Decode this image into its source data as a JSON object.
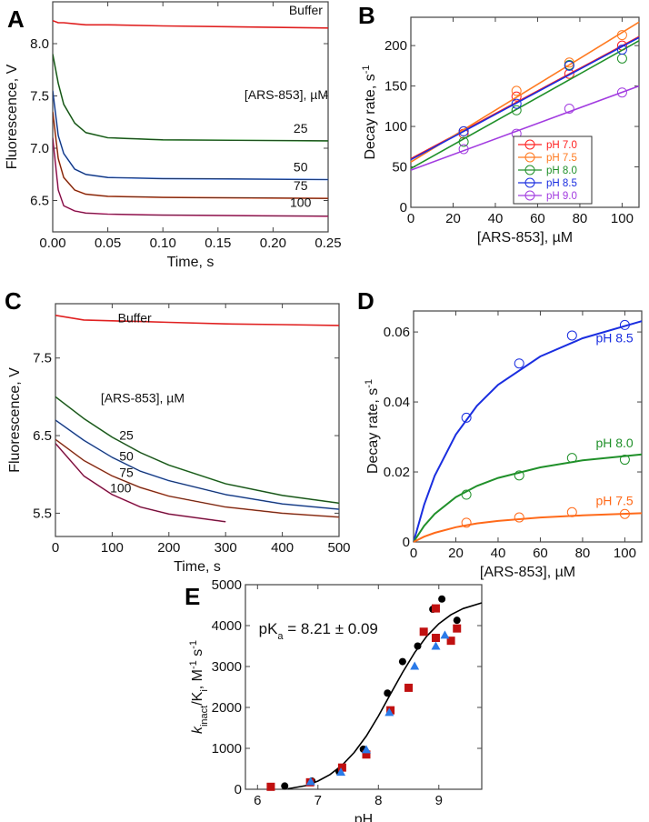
{
  "chart_data": [
    {
      "panel": "A",
      "type": "line",
      "xlabel": "Time, s",
      "ylabel": [
        {
          "t": "Fluorescence, V"
        }
      ],
      "xlim": [
        0,
        0.25
      ],
      "ylim": [
        6.2,
        8.4
      ],
      "xticks": [
        "0.00",
        "0.05",
        "0.10",
        "0.15",
        "0.20",
        "0.25"
      ],
      "yticks": [
        "6.5",
        "7.0",
        "7.5",
        "8.0"
      ],
      "grid": false,
      "x": [
        0,
        0.005,
        0.01,
        0.02,
        0.03,
        0.05,
        0.1,
        0.25
      ],
      "series": [
        {
          "name": "Buffer",
          "color": "#e02020",
          "values": [
            8.22,
            8.2,
            8.2,
            8.19,
            8.18,
            8.18,
            8.17,
            8.15
          ]
        },
        {
          "name": "25",
          "color": "#1f8a1f",
          "values": [
            7.9,
            7.62,
            7.42,
            7.24,
            7.15,
            7.1,
            7.08,
            7.07
          ]
        },
        {
          "name": "50",
          "color": "#1f5fe0",
          "values": [
            7.55,
            7.12,
            6.95,
            6.8,
            6.75,
            6.72,
            6.71,
            6.7
          ]
        },
        {
          "name": "75",
          "color": "#e04010",
          "values": [
            7.35,
            6.9,
            6.72,
            6.6,
            6.56,
            6.54,
            6.53,
            6.52
          ]
        },
        {
          "name": "100",
          "color": "#e0207a",
          "values": [
            7.1,
            6.6,
            6.45,
            6.4,
            6.38,
            6.37,
            6.36,
            6.35
          ]
        }
      ],
      "annotations": [
        "Buffer",
        "[ARS-853], µM",
        "25",
        "50",
        "75",
        "100"
      ]
    },
    {
      "panel": "B",
      "type": "scatter",
      "xlabel": "[ARS-853], µM",
      "ylabel": [
        {
          "t": "Decay rate, s"
        },
        {
          "t": "-1",
          "s": "sup"
        }
      ],
      "xlim": [
        0,
        108
      ],
      "ylim": [
        0,
        235
      ],
      "xticks": [
        "0",
        "20",
        "40",
        "60",
        "80",
        "100"
      ],
      "yticks": [
        "0",
        "50",
        "100",
        "150",
        "200"
      ],
      "grid": false,
      "legend": "bottom-right",
      "x": [
        25,
        50,
        75,
        100
      ],
      "series": [
        {
          "name": "pH 7.0",
          "color": "#ff2020",
          "values": [
            91,
            137,
            165,
            200
          ],
          "fit": [
            60,
            211
          ]
        },
        {
          "name": "pH 7.5",
          "color": "#ff7a20",
          "values": [
            94,
            144,
            179,
            213
          ],
          "fit": [
            56,
            229
          ]
        },
        {
          "name": "pH 8.0",
          "color": "#20902a",
          "values": [
            81,
            120,
            176,
            184
          ],
          "fit": [
            48,
            206
          ]
        },
        {
          "name": "pH 8.5",
          "color": "#1a2ee0",
          "values": [
            94,
            128,
            175,
            195
          ],
          "fit": [
            59,
            210
          ]
        },
        {
          "name": "pH 9.0",
          "color": "#a23ce0",
          "values": [
            72,
            91,
            122,
            142
          ],
          "fit": [
            46,
            150
          ]
        }
      ]
    },
    {
      "panel": "C",
      "type": "line",
      "xlabel": "Time, s",
      "ylabel": [
        {
          "t": "Fluorescence, V"
        }
      ],
      "xlim": [
        0,
        500
      ],
      "ylim": [
        5.2,
        8.2
      ],
      "xticks": [
        "0",
        "100",
        "200",
        "300",
        "400",
        "500"
      ],
      "yticks": [
        "5.5",
        "6.5",
        "7.5"
      ],
      "grid": false,
      "x": [
        0,
        50,
        100,
        150,
        200,
        300,
        400,
        500
      ],
      "series": [
        {
          "name": "Buffer",
          "color": "#e02020",
          "values": [
            8.05,
            7.99,
            7.98,
            7.97,
            7.96,
            7.94,
            7.93,
            7.92
          ]
        },
        {
          "name": "25",
          "color": "#2a8f2a",
          "values": [
            7.0,
            6.72,
            6.48,
            6.28,
            6.12,
            5.88,
            5.73,
            5.63
          ]
        },
        {
          "name": "50",
          "color": "#2f6be0",
          "values": [
            6.7,
            6.44,
            6.22,
            6.04,
            5.92,
            5.74,
            5.62,
            5.55
          ]
        },
        {
          "name": "75",
          "color": "#e0502a",
          "values": [
            6.45,
            6.18,
            5.98,
            5.83,
            5.72,
            5.58,
            5.5,
            5.45
          ]
        },
        {
          "name": "100",
          "color": "#d0206a",
          "values": [
            6.4,
            5.98,
            5.74,
            5.58,
            5.49,
            5.39,
            null,
            null
          ]
        }
      ],
      "annotations": [
        "Buffer",
        "[ARS-853], µM",
        "25",
        "50",
        "75",
        "100"
      ]
    },
    {
      "panel": "D",
      "type": "scatter",
      "xlabel": "[ARS-853], µM",
      "ylabel": [
        {
          "t": "Decay rate, s"
        },
        {
          "t": "-1",
          "s": "sup"
        }
      ],
      "xlim": [
        0,
        108
      ],
      "ylim": [
        0,
        0.066
      ],
      "xticks": [
        "0",
        "20",
        "40",
        "60",
        "80",
        "100"
      ],
      "yticks": [
        "0",
        "0.02",
        "0.04",
        "0.06"
      ],
      "grid": false,
      "x": [
        25,
        50,
        75,
        100
      ],
      "fit_x": [
        0,
        5,
        10,
        20,
        30,
        40,
        60,
        80,
        108
      ],
      "series": [
        {
          "name": "pH 8.5",
          "color": "#1a2ee0",
          "values": [
            0.0355,
            0.051,
            0.059,
            0.062
          ],
          "fit": [
            0,
            0.0106,
            0.0189,
            0.0307,
            0.0389,
            0.0449,
            0.053,
            0.0582,
            0.0631
          ]
        },
        {
          "name": "pH 8.0",
          "color": "#20902a",
          "values": [
            0.0135,
            0.019,
            0.024,
            0.0235
          ],
          "fit": [
            0,
            0.0046,
            0.008,
            0.0128,
            0.016,
            0.0183,
            0.0213,
            0.0233,
            0.025
          ]
        },
        {
          "name": "pH 7.5",
          "color": "#ff6a1a",
          "values": [
            0.0055,
            0.007,
            0.0085,
            0.008
          ],
          "fit": [
            0,
            0.0015,
            0.0026,
            0.0042,
            0.0053,
            0.006,
            0.007,
            0.0076,
            0.0082
          ]
        }
      ]
    },
    {
      "panel": "E",
      "type": "scatter",
      "xlabel": "pH",
      "ylabel": [
        {
          "t": "k",
          "s": "i"
        },
        {
          "t": "inact",
          "s": "sub"
        },
        {
          "t": "/K"
        },
        {
          "t": "i",
          "s": "sub"
        },
        {
          "t": ", M"
        },
        {
          "t": "-1",
          "s": "sup"
        },
        {
          "t": " s"
        },
        {
          "t": "-1",
          "s": "sup"
        }
      ],
      "xlim": [
        5.8,
        9.71
      ],
      "ylim": [
        0,
        5000
      ],
      "xticks": [
        "6",
        "7",
        "8",
        "9"
      ],
      "yticks": [
        "0",
        "1000",
        "2000",
        "3000",
        "4000",
        "5000"
      ],
      "grid": false,
      "annotation": [
        {
          "t": "pK"
        },
        {
          "t": "a",
          "s": "sub"
        },
        {
          "t": " = 8.21 ± 0.09"
        }
      ],
      "fit": {
        "color": "#000000",
        "x": [
          6.5,
          6.8,
          7.0,
          7.2,
          7.4,
          7.6,
          7.8,
          8.0,
          8.2,
          8.4,
          8.6,
          8.8,
          9.0,
          9.2,
          9.4,
          9.71
        ],
        "y": [
          10,
          90,
          200,
          360,
          590,
          900,
          1300,
          1790,
          2326,
          2855,
          3340,
          3739,
          4045,
          4265,
          4415,
          4555
        ]
      },
      "series": [
        {
          "marker": "circle",
          "color": "#000000",
          "x": [
            6.45,
            6.9,
            7.35,
            7.75,
            8.15,
            8.4,
            8.65,
            8.9,
            9.05,
            9.3
          ],
          "y": [
            80,
            200,
            430,
            980,
            2350,
            3120,
            3500,
            4400,
            4650,
            4130
          ]
        },
        {
          "marker": "square",
          "color": "#c01010",
          "x": [
            6.22,
            6.87,
            7.4,
            7.8,
            8.2,
            8.5,
            8.75,
            8.95,
            8.95,
            9.2,
            9.3
          ],
          "y": [
            60,
            170,
            530,
            850,
            1930,
            2480,
            3850,
            4420,
            3700,
            3630,
            3930
          ]
        },
        {
          "marker": "triangle",
          "color": "#2a7ae8",
          "x": [
            6.88,
            7.38,
            7.8,
            8.18,
            8.6,
            8.95,
            9.1
          ],
          "y": [
            190,
            420,
            970,
            1880,
            3010,
            3500,
            3770
          ]
        }
      ]
    }
  ]
}
